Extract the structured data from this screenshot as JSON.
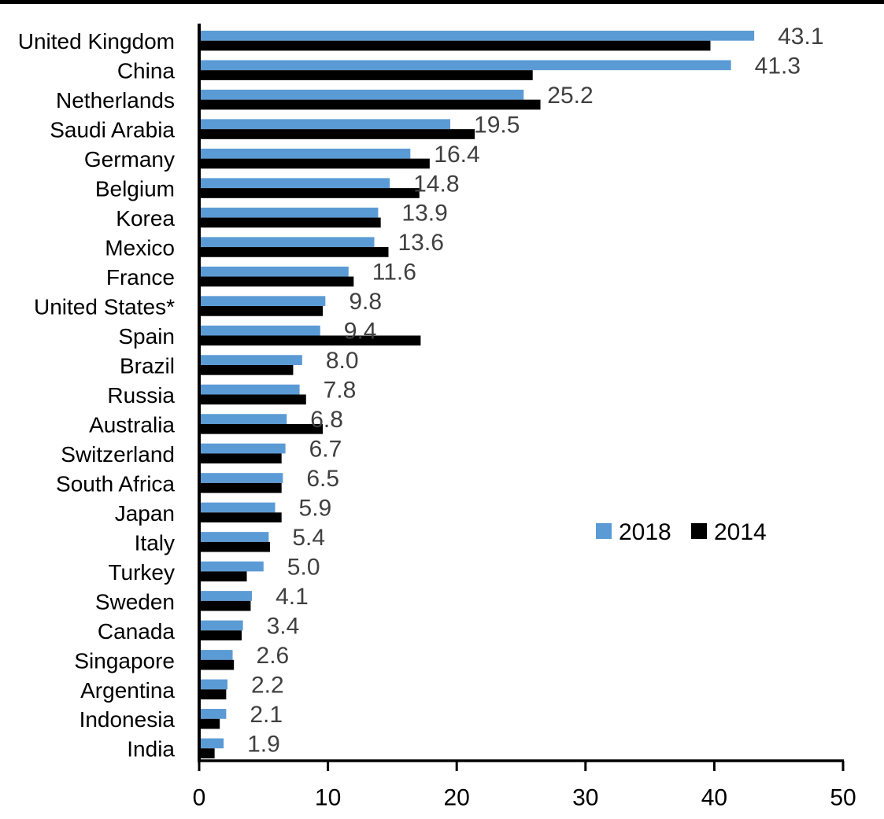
{
  "chart_data": {
    "type": "bar",
    "orientation": "horizontal",
    "title": "",
    "xlabel": "",
    "ylabel": "",
    "categories": [
      "United Kingdom",
      "China",
      "Netherlands",
      "Saudi Arabia",
      "Germany",
      "Belgium",
      "Korea",
      "Mexico",
      "France",
      "United States*",
      "Spain",
      "Brazil",
      "Russia",
      "Australia",
      "Switzerland",
      "South Africa",
      "Japan",
      "Italy",
      "Turkey",
      "Sweden",
      "Canada",
      "Singapore",
      "Argentina",
      "Indonesia",
      "India"
    ],
    "series": [
      {
        "name": "2018",
        "color": "#5B9BD5",
        "values": [
          43.1,
          41.3,
          25.2,
          19.5,
          16.4,
          14.8,
          13.9,
          13.6,
          11.6,
          9.8,
          9.4,
          8.0,
          7.8,
          6.8,
          6.7,
          6.5,
          5.9,
          5.4,
          5.0,
          4.1,
          3.4,
          2.6,
          2.2,
          2.1,
          1.9
        ],
        "data_labels": [
          "43.1",
          "41.3",
          "25.2",
          "19.5",
          "16.4",
          "14.8",
          "13.9",
          "13.6",
          "11.6",
          "9.8",
          "9.4",
          "8.0",
          "7.8",
          "6.8",
          "6.7",
          "6.5",
          "5.9",
          "5.4",
          "5.0",
          "4.1",
          "3.4",
          "2.6",
          "2.2",
          "2.1",
          "1.9"
        ]
      },
      {
        "name": "2014",
        "color": "#000000",
        "values": [
          39.7,
          25.9,
          26.5,
          21.4,
          17.9,
          17.1,
          14.1,
          14.7,
          12.0,
          9.6,
          17.2,
          7.3,
          8.3,
          9.6,
          6.4,
          6.4,
          6.4,
          5.5,
          3.7,
          4.0,
          3.3,
          2.7,
          2.1,
          1.6,
          1.2
        ]
      }
    ],
    "xlim": [
      0,
      50
    ],
    "x_ticks": [
      0,
      10,
      20,
      30,
      40,
      50
    ],
    "x_tick_labels": [
      "0",
      "10",
      "20",
      "30",
      "40",
      "50"
    ],
    "grid": false,
    "legend": {
      "position": "middle-right",
      "items": [
        {
          "label": "2018",
          "color": "#5B9BD5"
        },
        {
          "label": "2014",
          "color": "#000000"
        }
      ]
    },
    "value_label_color": "#404040",
    "axis_color": "#000000",
    "label_color": "#000000"
  }
}
